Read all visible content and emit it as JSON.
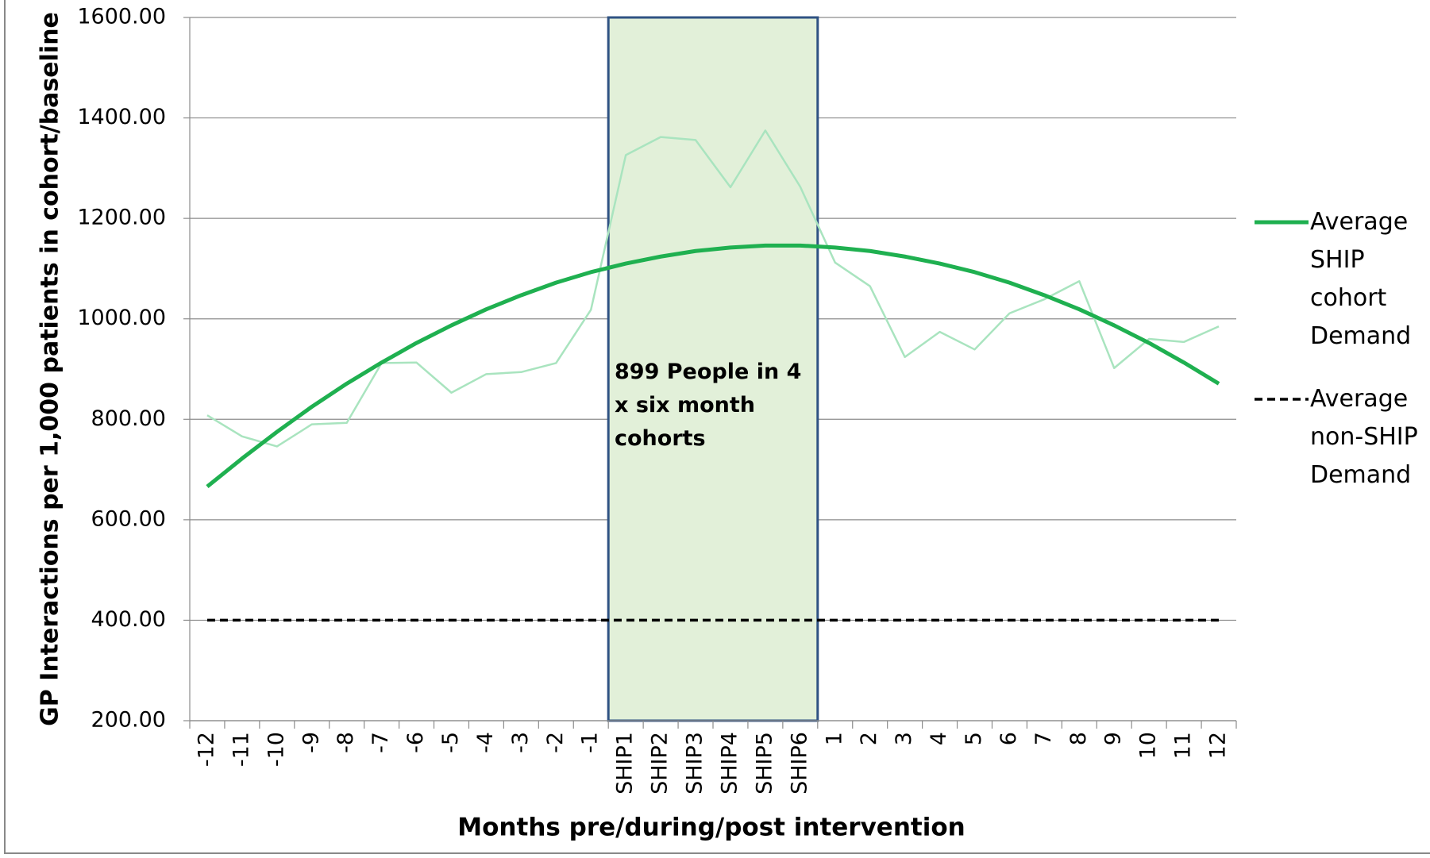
{
  "chart_data": {
    "type": "line",
    "x_label": "Months pre/during/post intervention",
    "y_label": "GP Interactions per 1,000 patients in cohort/baseline",
    "categories": [
      "-12",
      "-11",
      "-10",
      "-9",
      "-8",
      "-7",
      "-6",
      "-5",
      "-4",
      "-3",
      "-2",
      "-1",
      "SHIP1",
      "SHIP2",
      "SHIP3",
      "SHIP4",
      "SHIP5",
      "SHIP6",
      "1",
      "2",
      "3",
      "4",
      "5",
      "6",
      "7",
      "8",
      "9",
      "10",
      "11",
      "12"
    ],
    "series": [
      {
        "color": "#a9e4bf",
        "width": 2.5,
        "values": [
          808,
          766,
          746,
          790,
          793,
          912,
          913,
          853,
          890,
          894,
          912,
          1018,
          1326,
          1362,
          1356,
          1262,
          1375,
          1263,
          1112,
          1065,
          924,
          974,
          939,
          1011,
          1039,
          1075,
          902,
          960,
          954,
          985
        ]
      },
      {
        "name": "Average SHIP cohort Demand",
        "color": "#1fb050",
        "width": 5,
        "values": [
          666,
          722,
          775,
          825,
          871,
          913,
          952,
          987,
          1019,
          1047,
          1072,
          1093,
          1110,
          1124,
          1135,
          1142,
          1146,
          1146,
          1142,
          1135,
          1124,
          1110,
          1093,
          1072,
          1047,
          1019,
          987,
          952,
          913,
          871
        ]
      },
      {
        "name": "Average non-SHIP Demand",
        "color": "#000000",
        "width": 3.5,
        "style": "dashed",
        "values": [
          400,
          400,
          400,
          400,
          400,
          400,
          400,
          400,
          400,
          400,
          400,
          400,
          400,
          400,
          400,
          400,
          400,
          400,
          400,
          400,
          400,
          400,
          400,
          400,
          400,
          400,
          400,
          400,
          400,
          400
        ]
      }
    ],
    "ylim": [
      200,
      1600
    ],
    "yticks": [
      {
        "value": 200,
        "label": "200.00"
      },
      {
        "value": 400,
        "label": "400.00"
      },
      {
        "value": 600,
        "label": "600.00"
      },
      {
        "value": 800,
        "label": "800.00"
      },
      {
        "value": 1000,
        "label": "1000.00"
      },
      {
        "value": 1200,
        "label": "1200.00"
      },
      {
        "value": 1400,
        "label": "1400.00"
      },
      {
        "value": 1600,
        "label": "1600.00"
      }
    ],
    "grid": true,
    "legend": "right",
    "annotation": {
      "text": "899 People in 4 x six month cohorts",
      "from": "SHIP1",
      "to": "SHIP6",
      "color": "#e2f0d9",
      "border": "#2f5283"
    }
  }
}
